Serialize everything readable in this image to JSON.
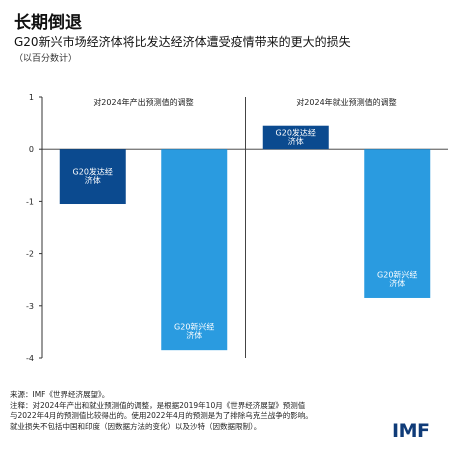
{
  "header": {
    "title": "长期倒退",
    "subtitle": "G20新兴市场经济体将比发达经济体遭受疫情带来的更大的损失",
    "unit": "（以百分数计）"
  },
  "chart_data": {
    "type": "bar",
    "ylim": [
      -4,
      1
    ],
    "yticks": [
      "1",
      "0",
      "-1",
      "-2",
      "-3",
      "-4"
    ],
    "grid": false,
    "colors": {
      "advanced": "#0b4a8f",
      "emerging": "#2a9be0"
    },
    "panels": [
      {
        "title": "对2024年产出预测值的调整",
        "bars": [
          {
            "label": "G20发达经济体",
            "label_lines": [
              "G20发达经",
              "济体"
            ],
            "value": -1.05,
            "color_key": "advanced"
          },
          {
            "label": "G20新兴经济体",
            "label_lines": [
              "G20新兴经",
              "济体"
            ],
            "value": -3.85,
            "color_key": "emerging"
          }
        ]
      },
      {
        "title": "对2024年就业预测值的调整",
        "bars": [
          {
            "label": "G20发达经济体",
            "label_lines": [
              "G20发达经",
              "济体"
            ],
            "value": 0.45,
            "color_key": "advanced"
          },
          {
            "label": "G20新兴经济体",
            "label_lines": [
              "G20新兴经",
              "济体"
            ],
            "value": -2.85,
            "color_key": "emerging"
          }
        ]
      }
    ]
  },
  "footer": {
    "source": "来源：IMF《世界经济展望》。",
    "note1": "注释：对2024年产出和就业预测值的调整，是根据2019年10月《世界经济展望》预测值",
    "note2": "与2022年4月的预测值比较得出的。使用2022年4月的预测是为了排除乌克兰战争的影响。",
    "note3": "就业损失不包括中国和印度（因数据方法的变化）以及沙特（因数据限制）。",
    "logo": "IMF"
  }
}
